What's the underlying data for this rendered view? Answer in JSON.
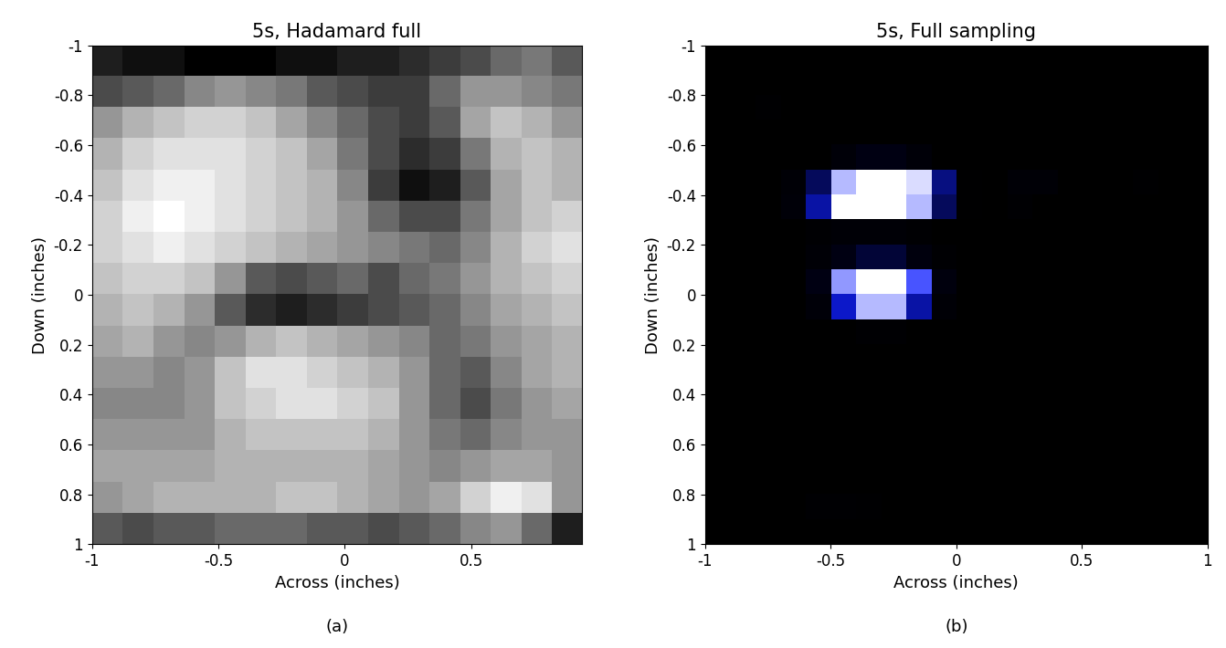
{
  "chart_data": [
    {
      "type": "heatmap",
      "title": "5s, Hadamard full",
      "x_label": "Across (inches)",
      "y_label": "Down (inches)",
      "caption": "(a)",
      "xlim": [
        -1,
        0.94
      ],
      "ylim": [
        1,
        -1
      ],
      "xticks": [
        -1,
        -0.5,
        0,
        0.5
      ],
      "yticks": [
        -1,
        -0.8,
        -0.6,
        -0.4,
        -0.2,
        0,
        0.2,
        0.4,
        0.6,
        0.8,
        1
      ],
      "cells": [
        [
          0.2,
          0.15,
          0.15,
          0.1,
          0.1,
          0.1,
          0.15,
          0.15,
          0.2,
          0.2,
          0.25,
          0.3,
          0.35,
          0.45,
          0.5,
          0.4
        ],
        [
          0.35,
          0.4,
          0.45,
          0.55,
          0.6,
          0.55,
          0.5,
          0.4,
          0.35,
          0.3,
          0.3,
          0.45,
          0.6,
          0.6,
          0.55,
          0.5
        ],
        [
          0.6,
          0.7,
          0.75,
          0.8,
          0.8,
          0.75,
          0.65,
          0.55,
          0.45,
          0.35,
          0.3,
          0.4,
          0.65,
          0.75,
          0.7,
          0.6
        ],
        [
          0.7,
          0.8,
          0.85,
          0.85,
          0.85,
          0.8,
          0.75,
          0.65,
          0.5,
          0.35,
          0.25,
          0.3,
          0.5,
          0.7,
          0.75,
          0.7
        ],
        [
          0.75,
          0.85,
          0.9,
          0.9,
          0.85,
          0.8,
          0.75,
          0.7,
          0.55,
          0.3,
          0.15,
          0.2,
          0.4,
          0.65,
          0.75,
          0.7
        ],
        [
          0.8,
          0.9,
          0.95,
          0.9,
          0.85,
          0.8,
          0.75,
          0.7,
          0.6,
          0.45,
          0.35,
          0.35,
          0.5,
          0.65,
          0.75,
          0.8
        ],
        [
          0.8,
          0.85,
          0.9,
          0.85,
          0.8,
          0.75,
          0.7,
          0.65,
          0.6,
          0.55,
          0.5,
          0.45,
          0.55,
          0.7,
          0.8,
          0.85
        ],
        [
          0.75,
          0.8,
          0.8,
          0.75,
          0.6,
          0.4,
          0.35,
          0.4,
          0.45,
          0.35,
          0.45,
          0.5,
          0.6,
          0.7,
          0.75,
          0.8
        ],
        [
          0.7,
          0.75,
          0.7,
          0.6,
          0.4,
          0.25,
          0.2,
          0.25,
          0.3,
          0.35,
          0.4,
          0.45,
          0.55,
          0.65,
          0.7,
          0.75
        ],
        [
          0.65,
          0.7,
          0.6,
          0.55,
          0.6,
          0.7,
          0.75,
          0.7,
          0.65,
          0.6,
          0.55,
          0.45,
          0.5,
          0.6,
          0.65,
          0.7
        ],
        [
          0.6,
          0.6,
          0.55,
          0.6,
          0.75,
          0.85,
          0.85,
          0.8,
          0.75,
          0.7,
          0.6,
          0.45,
          0.4,
          0.55,
          0.65,
          0.7
        ],
        [
          0.55,
          0.55,
          0.55,
          0.6,
          0.75,
          0.8,
          0.85,
          0.85,
          0.8,
          0.75,
          0.6,
          0.45,
          0.35,
          0.5,
          0.6,
          0.65
        ],
        [
          0.6,
          0.6,
          0.6,
          0.6,
          0.7,
          0.75,
          0.75,
          0.75,
          0.75,
          0.7,
          0.6,
          0.5,
          0.45,
          0.55,
          0.6,
          0.6
        ],
        [
          0.65,
          0.65,
          0.65,
          0.65,
          0.7,
          0.7,
          0.7,
          0.7,
          0.7,
          0.65,
          0.6,
          0.55,
          0.6,
          0.65,
          0.65,
          0.6
        ],
        [
          0.6,
          0.65,
          0.7,
          0.7,
          0.7,
          0.7,
          0.75,
          0.75,
          0.7,
          0.65,
          0.6,
          0.65,
          0.8,
          0.9,
          0.85,
          0.6
        ],
        [
          0.4,
          0.35,
          0.4,
          0.4,
          0.45,
          0.45,
          0.45,
          0.4,
          0.4,
          0.35,
          0.4,
          0.45,
          0.55,
          0.6,
          0.45,
          0.2
        ]
      ]
    },
    {
      "type": "heatmap",
      "title": "5s, Full sampling",
      "x_label": "Across (inches)",
      "y_label": "Down (inches)",
      "caption": "(b)",
      "xlim": [
        -1,
        1
      ],
      "ylim": [
        1,
        -1
      ],
      "xticks": [
        -1,
        -0.5,
        0,
        0.5,
        1
      ],
      "yticks": [
        -1,
        -0.8,
        -0.6,
        -0.4,
        -0.2,
        0,
        0.2,
        0.4,
        0.6,
        0.8,
        1
      ],
      "cells": [
        [
          0.03,
          0.03,
          0.03,
          0.03,
          0.03,
          0.03,
          0.03,
          0.03,
          0.03,
          0.03,
          0.03,
          0.03,
          0.03,
          0.03,
          0.03,
          0.03,
          0.03,
          0.03,
          0.03,
          0.03
        ],
        [
          0.03,
          0.03,
          0.03,
          0.03,
          0.03,
          0.03,
          0.03,
          0.03,
          0.03,
          0.03,
          0.03,
          0.03,
          0.03,
          0.03,
          0.03,
          0.03,
          0.03,
          0.03,
          0.03,
          0.03
        ],
        [
          0.03,
          0.03,
          0.08,
          0.03,
          0.03,
          0.03,
          0.03,
          0.03,
          0.03,
          0.03,
          0.03,
          0.03,
          0.03,
          0.03,
          0.03,
          0.03,
          0.03,
          0.03,
          0.03,
          0.03
        ],
        [
          0.03,
          0.03,
          0.03,
          0.03,
          0.03,
          0.03,
          0.03,
          0.03,
          0.03,
          0.03,
          0.03,
          0.03,
          0.03,
          0.03,
          0.03,
          0.03,
          0.03,
          0.03,
          0.03,
          0.03
        ],
        [
          0.03,
          0.03,
          0.03,
          0.03,
          0.03,
          0.2,
          0.35,
          0.35,
          0.2,
          0.03,
          0.03,
          0.03,
          0.03,
          0.03,
          0.03,
          0.03,
          0.03,
          0.03,
          0.03,
          0.03
        ],
        [
          0.03,
          0.03,
          0.03,
          0.15,
          0.45,
          0.9,
          1,
          1,
          0.95,
          0.5,
          0.05,
          0.03,
          0.15,
          0.15,
          0.03,
          0.03,
          0.03,
          0.08,
          0.03,
          0.03
        ],
        [
          0.03,
          0.03,
          0.03,
          0.2,
          0.55,
          1,
          1,
          1,
          0.9,
          0.45,
          0.05,
          0.03,
          0.1,
          0.03,
          0.03,
          0.03,
          0.03,
          0.03,
          0.03,
          0.03
        ],
        [
          0.03,
          0.03,
          0.03,
          0.03,
          0.1,
          0.15,
          0.15,
          0.15,
          0.1,
          0.03,
          0.03,
          0.03,
          0.03,
          0.03,
          0.03,
          0.03,
          0.03,
          0.03,
          0.03,
          0.03
        ],
        [
          0.03,
          0.03,
          0.03,
          0.03,
          0.15,
          0.35,
          0.4,
          0.4,
          0.3,
          0.1,
          0.03,
          0.03,
          0.03,
          0.03,
          0.03,
          0.03,
          0.03,
          0.03,
          0.03,
          0.03
        ],
        [
          0.03,
          0.03,
          0.03,
          0.03,
          0.35,
          0.85,
          1,
          1,
          0.75,
          0.3,
          0.03,
          0.03,
          0.03,
          0.03,
          0.03,
          0.03,
          0.03,
          0.03,
          0.03,
          0.03
        ],
        [
          0.03,
          0.03,
          0.03,
          0.03,
          0.2,
          0.6,
          0.9,
          0.9,
          0.55,
          0.15,
          0.03,
          0.03,
          0.03,
          0.03,
          0.03,
          0.03,
          0.03,
          0.03,
          0.03,
          0.03
        ],
        [
          0.03,
          0.03,
          0.03,
          0.03,
          0.03,
          0.03,
          0.1,
          0.1,
          0.03,
          0.03,
          0.03,
          0.03,
          0.03,
          0.03,
          0.03,
          0.03,
          0.03,
          0.03,
          0.03,
          0.03
        ],
        [
          0.02,
          0.02,
          0.02,
          0.02,
          0.02,
          0.02,
          0.02,
          0.02,
          0.02,
          0.02,
          0.02,
          0.02,
          0.02,
          0.02,
          0.02,
          0.02,
          0.02,
          0.02,
          0.02,
          0.02
        ],
        [
          0.02,
          0.02,
          0.02,
          0.02,
          0.02,
          0.02,
          0.02,
          0.02,
          0.02,
          0.02,
          0.02,
          0.02,
          0.02,
          0.02,
          0.02,
          0.02,
          0.02,
          0.02,
          0.02,
          0.02
        ],
        [
          0.02,
          0.02,
          0.02,
          0.02,
          0.02,
          0.02,
          0.02,
          0.02,
          0.02,
          0.02,
          0.02,
          0.02,
          0.02,
          0.02,
          0.02,
          0.02,
          0.02,
          0.02,
          0.02,
          0.02
        ],
        [
          0.02,
          0.02,
          0.02,
          0.02,
          0.02,
          0.02,
          0.02,
          0.02,
          0.02,
          0.02,
          0.02,
          0.02,
          0.02,
          0.02,
          0.02,
          0.02,
          0.02,
          0.02,
          0.02,
          0.02
        ],
        [
          0.02,
          0.02,
          0.02,
          0.02,
          0.02,
          0.02,
          0.02,
          0.02,
          0.02,
          0.02,
          0.02,
          0.02,
          0.02,
          0.02,
          0.02,
          0.02,
          0.02,
          0.02,
          0.02,
          0.02
        ],
        [
          0.02,
          0.02,
          0.02,
          0.02,
          0.02,
          0.02,
          0.02,
          0.02,
          0.02,
          0.02,
          0.02,
          0.02,
          0.02,
          0.02,
          0.02,
          0.02,
          0.02,
          0.02,
          0.02,
          0.02
        ],
        [
          0.02,
          0.02,
          0.02,
          0.02,
          0.1,
          0.1,
          0.08,
          0.02,
          0.02,
          0.02,
          0.02,
          0.02,
          0.02,
          0.02,
          0.02,
          0.02,
          0.02,
          0.02,
          0.02,
          0.02
        ],
        [
          0.02,
          0.02,
          0.02,
          0.02,
          0.02,
          0.02,
          0.02,
          0.02,
          0.02,
          0.02,
          0.02,
          0.02,
          0.02,
          0.02,
          0.02,
          0.02,
          0.02,
          0.02,
          0.02,
          0.02
        ]
      ]
    }
  ]
}
